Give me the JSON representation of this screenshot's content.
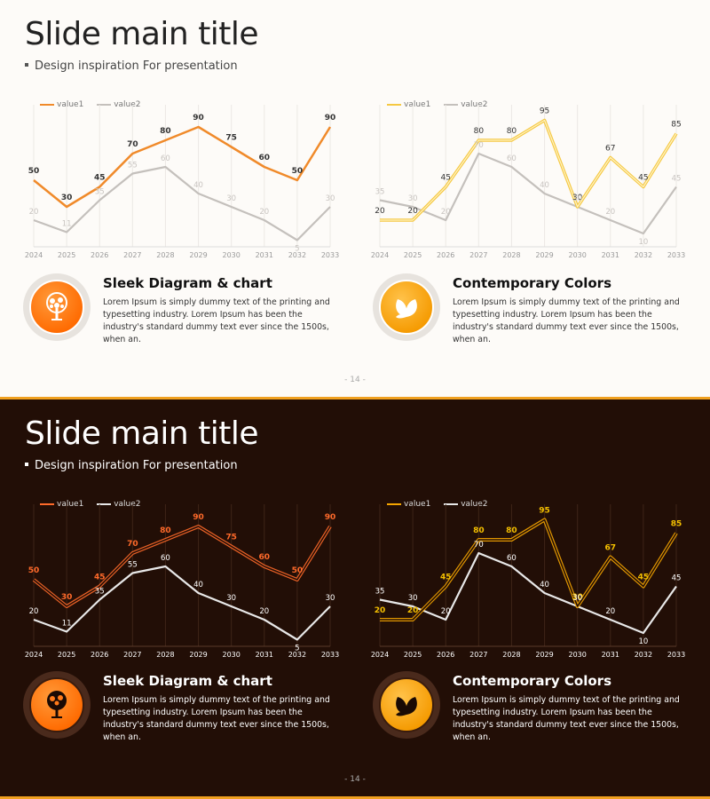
{
  "slides": [
    {
      "theme": "light",
      "title": "Slide main title",
      "subtitle": "Design inspiration For presentation",
      "page": "- 14 -",
      "features": [
        {
          "heading": "Sleek Diagram & chart",
          "body": "Lorem Ipsum is simply dummy text of the printing and typesetting industry. Lorem Ipsum has been the industry's standard dummy text ever since the 1500s, when an.",
          "icon": "tree-icon"
        },
        {
          "heading": "Contemporary Colors",
          "body": "Lorem Ipsum is simply dummy text of the printing and typesetting industry. Lorem Ipsum has been the industry's standard dummy text ever since the 1500s, when an.",
          "icon": "leaves-icon"
        }
      ]
    },
    {
      "theme": "dark",
      "title": "Slide main title",
      "subtitle": "Design inspiration For presentation",
      "page": "- 14 -",
      "features": [
        {
          "heading": "Sleek Diagram & chart",
          "body": "Lorem Ipsum is simply dummy text of the printing and typesetting industry. Lorem Ipsum has been the industry's standard dummy text ever since the 1500s, when an.",
          "icon": "tree-icon"
        },
        {
          "heading": "Contemporary Colors",
          "body": "Lorem Ipsum is simply dummy text of the printing and typesetting industry. Lorem Ipsum has been the industry's standard dummy text ever since the 1500s, when an.",
          "icon": "leaves-icon"
        }
      ]
    }
  ],
  "colors": {
    "light_value1_left": "#f08a2a",
    "light_value1_right": "#f5c842",
    "light_value2": "#c4c0bc",
    "dark_value1_left": "#ff6a2a",
    "dark_value1_right": "#f5a500",
    "dark_value2": "#e8e8e8"
  },
  "chart_data": [
    {
      "type": "line",
      "slide": "light",
      "position": "left",
      "categories": [
        "2024",
        "2025",
        "2026",
        "2027",
        "2028",
        "2029",
        "2030",
        "2031",
        "2032",
        "2033"
      ],
      "series": [
        {
          "name": "value1",
          "values": [
            50,
            30,
            45,
            70,
            80,
            90,
            75,
            60,
            50,
            90
          ]
        },
        {
          "name": "value2",
          "values": [
            20,
            11,
            35,
            55,
            60,
            40,
            30,
            20,
            5,
            30
          ]
        }
      ],
      "ylim": [
        0,
        100
      ],
      "legend": "top-left",
      "grid": "vertical"
    },
    {
      "type": "line",
      "slide": "light",
      "position": "right",
      "categories": [
        "2024",
        "2025",
        "2026",
        "2027",
        "2028",
        "2029",
        "2030",
        "2031",
        "2032",
        "2033"
      ],
      "series": [
        {
          "name": "value1",
          "values": [
            20,
            20,
            45,
            80,
            80,
            95,
            30,
            67,
            45,
            85
          ]
        },
        {
          "name": "value2",
          "values": [
            35,
            30,
            20,
            70,
            60,
            40,
            30,
            20,
            10,
            45
          ]
        }
      ],
      "ylim": [
        0,
        100
      ],
      "legend": "top-left",
      "grid": "vertical"
    },
    {
      "type": "line",
      "slide": "dark",
      "position": "left",
      "categories": [
        "2024",
        "2025",
        "2026",
        "2027",
        "2028",
        "2029",
        "2030",
        "2031",
        "2032",
        "2033"
      ],
      "series": [
        {
          "name": "value1",
          "values": [
            50,
            30,
            45,
            70,
            80,
            90,
            75,
            60,
            50,
            90
          ]
        },
        {
          "name": "value2",
          "values": [
            20,
            11,
            35,
            55,
            60,
            40,
            30,
            20,
            5,
            30
          ]
        }
      ],
      "ylim": [
        0,
        100
      ],
      "legend": "top-left",
      "grid": "vertical"
    },
    {
      "type": "line",
      "slide": "dark",
      "position": "right",
      "categories": [
        "2024",
        "2025",
        "2026",
        "2027",
        "2028",
        "2029",
        "2030",
        "2031",
        "2032",
        "2033"
      ],
      "series": [
        {
          "name": "value1",
          "values": [
            20,
            20,
            45,
            80,
            80,
            95,
            30,
            67,
            45,
            85
          ]
        },
        {
          "name": "value2",
          "values": [
            35,
            30,
            20,
            70,
            60,
            40,
            30,
            20,
            10,
            45
          ]
        }
      ],
      "ylim": [
        0,
        100
      ],
      "legend": "top-left",
      "grid": "vertical"
    }
  ]
}
